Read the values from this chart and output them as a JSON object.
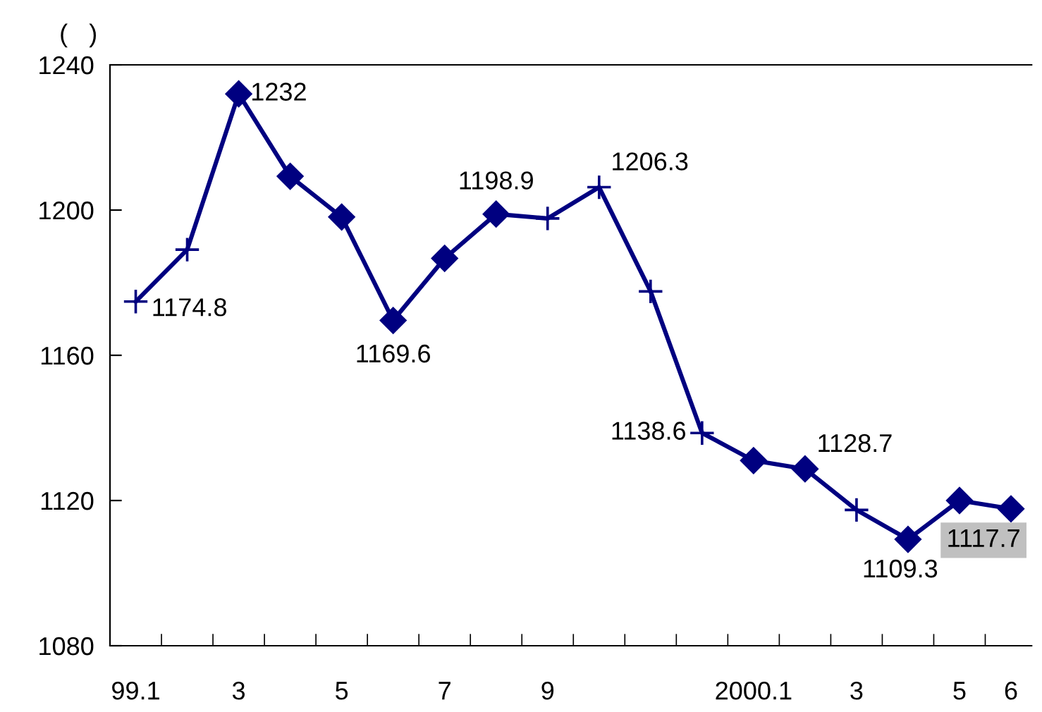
{
  "chart_data": {
    "type": "line",
    "ylabel": "(   )",
    "categories": [
      "99.1",
      null,
      "3",
      null,
      "5",
      null,
      "7",
      null,
      "9",
      null,
      null,
      null,
      "2000.1",
      null,
      "3",
      null,
      "5",
      "6"
    ],
    "series": [
      {
        "color": "#000080",
        "marker": "cross",
        "values": [
          1174.8,
          1189.1,
          1232,
          1209.3,
          1198.1,
          1169.6,
          1186.7,
          1198.9,
          1197.7,
          1206.3,
          1177.6,
          1138.6,
          1131.0,
          1128.7,
          1117.4,
          1109.3,
          1120.0,
          1117.7
        ],
        "value_labels": [
          "1174.8",
          null,
          "1232",
          null,
          null,
          "1169.6",
          null,
          "1198.9",
          null,
          "1206.3",
          null,
          "1138.6",
          null,
          "1128.7",
          null,
          "1109.3",
          null,
          "1117.7"
        ]
      },
      {
        "type": "scatter",
        "color": "#000080",
        "marker": "diamond",
        "values": [
          null,
          null,
          1232,
          1209.3,
          1198.1,
          1169.6,
          1186.7,
          1198.9,
          null,
          null,
          null,
          null,
          1131.0,
          1128.7,
          null,
          1109.3,
          1120.0,
          1117.7
        ]
      }
    ],
    "ylim": [
      1080,
      1240
    ],
    "yticks": [
      1080,
      1120,
      1160,
      1200,
      1240
    ],
    "grid": false,
    "legend": false
  }
}
